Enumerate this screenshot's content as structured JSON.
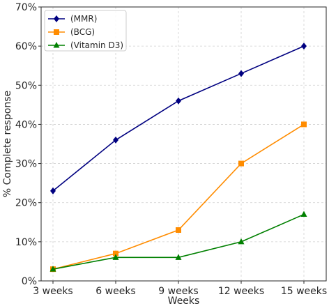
{
  "chart_data": {
    "type": "line",
    "categories": [
      "3 weeks",
      "6 weeks",
      "9 weeks",
      "12 weeks",
      "15 weeks"
    ],
    "xlabel": "Weeks",
    "ylabel": "% Complete response",
    "ylim": [
      0,
      70
    ],
    "yticks": [
      0,
      10,
      20,
      30,
      40,
      50,
      60,
      70
    ],
    "ytick_labels": [
      "0%",
      "10%",
      "20%",
      "30%",
      "40%",
      "50%",
      "60%",
      "70%"
    ],
    "grid": true,
    "legend_position": "top-left",
    "series": [
      {
        "name": "(MMR)",
        "values": [
          23,
          36,
          46,
          53,
          60
        ],
        "color": "#000080",
        "marker": "diamond"
      },
      {
        "name": "(BCG)",
        "values": [
          3,
          7,
          13,
          30,
          40
        ],
        "color": "#ff8c00",
        "marker": "square"
      },
      {
        "name": "(Vitamin D3)",
        "values": [
          3,
          6,
          6,
          10,
          17
        ],
        "color": "#008000",
        "marker": "triangle"
      }
    ]
  }
}
